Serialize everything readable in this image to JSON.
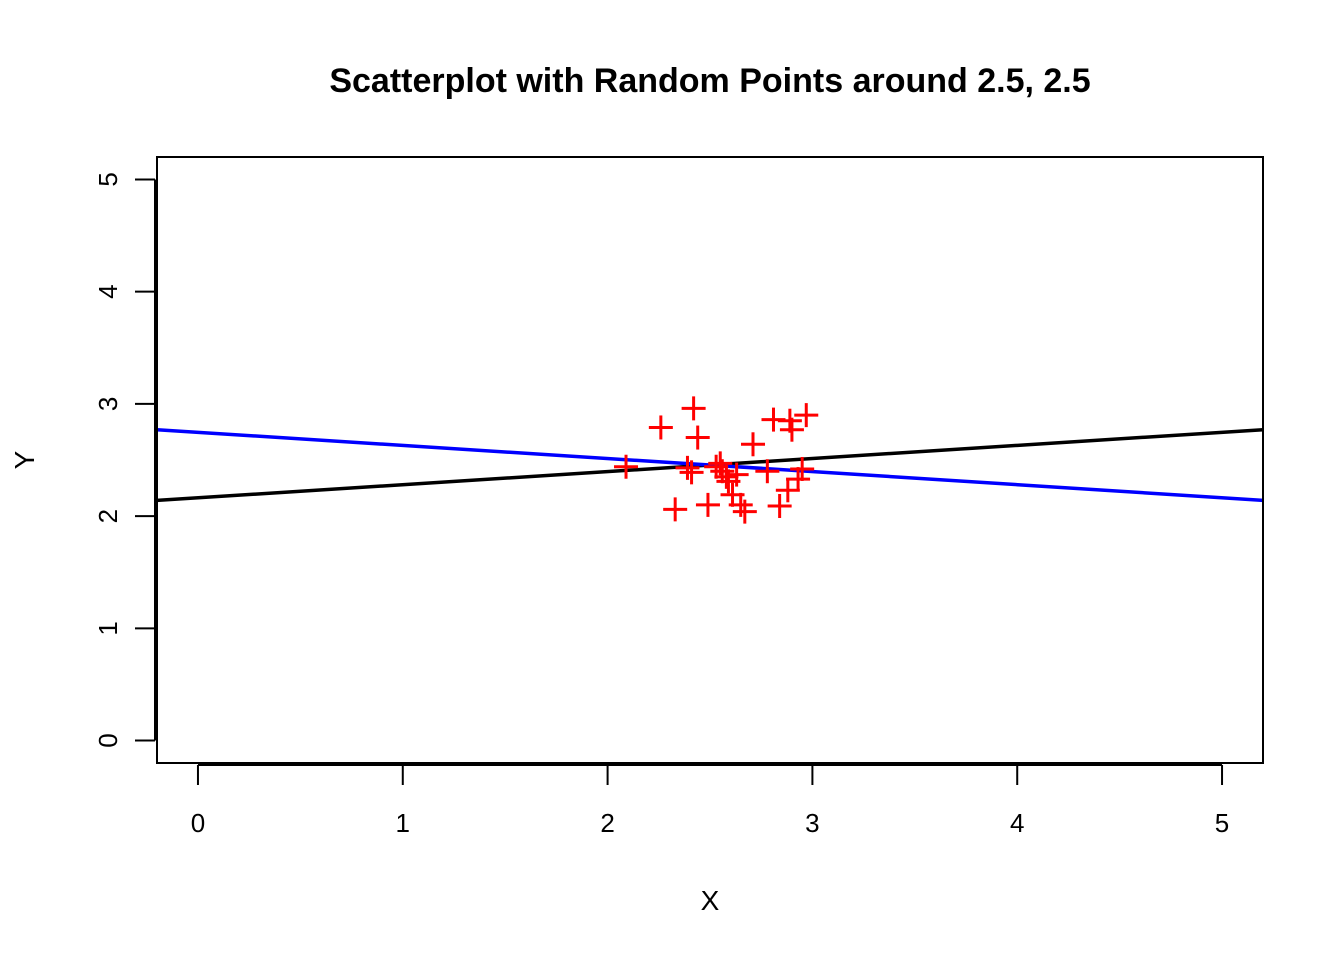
{
  "chart_data": {
    "type": "scatter",
    "title": "Scatterplot with Random Points around 2.5, 2.5",
    "xlabel": "X",
    "ylabel": "Y",
    "xlim": [
      -0.2,
      5.2
    ],
    "ylim": [
      -0.2,
      5.2
    ],
    "xticks": [
      "0",
      "1",
      "2",
      "3",
      "4",
      "5"
    ],
    "yticks": [
      "0",
      "1",
      "2",
      "3",
      "4",
      "5"
    ],
    "grid": false,
    "point_color": "#ff0000",
    "points": [
      {
        "x": 2.09,
        "y": 2.44
      },
      {
        "x": 2.26,
        "y": 2.79
      },
      {
        "x": 2.33,
        "y": 2.06
      },
      {
        "x": 2.39,
        "y": 2.43
      },
      {
        "x": 2.41,
        "y": 2.39
      },
      {
        "x": 2.42,
        "y": 2.96
      },
      {
        "x": 2.44,
        "y": 2.7
      },
      {
        "x": 2.49,
        "y": 2.1
      },
      {
        "x": 2.53,
        "y": 2.44
      },
      {
        "x": 2.55,
        "y": 2.47
      },
      {
        "x": 2.56,
        "y": 2.4
      },
      {
        "x": 2.58,
        "y": 2.35
      },
      {
        "x": 2.59,
        "y": 2.31
      },
      {
        "x": 2.61,
        "y": 2.19
      },
      {
        "x": 2.63,
        "y": 2.37
      },
      {
        "x": 2.65,
        "y": 2.1
      },
      {
        "x": 2.67,
        "y": 2.04
      },
      {
        "x": 2.71,
        "y": 2.64
      },
      {
        "x": 2.78,
        "y": 2.4
      },
      {
        "x": 2.81,
        "y": 2.86
      },
      {
        "x": 2.84,
        "y": 2.09
      },
      {
        "x": 2.88,
        "y": 2.23
      },
      {
        "x": 2.89,
        "y": 2.85
      },
      {
        "x": 2.9,
        "y": 2.77
      },
      {
        "x": 2.93,
        "y": 2.33
      },
      {
        "x": 2.95,
        "y": 2.42
      },
      {
        "x": 2.97,
        "y": 2.9
      }
    ],
    "lines": [
      {
        "color": "#000000",
        "x": [
          -0.2,
          5.2
        ],
        "y": [
          2.14,
          2.77
        ]
      },
      {
        "color": "#0000ff",
        "x": [
          -0.2,
          5.2
        ],
        "y": [
          2.77,
          2.14
        ]
      }
    ]
  }
}
